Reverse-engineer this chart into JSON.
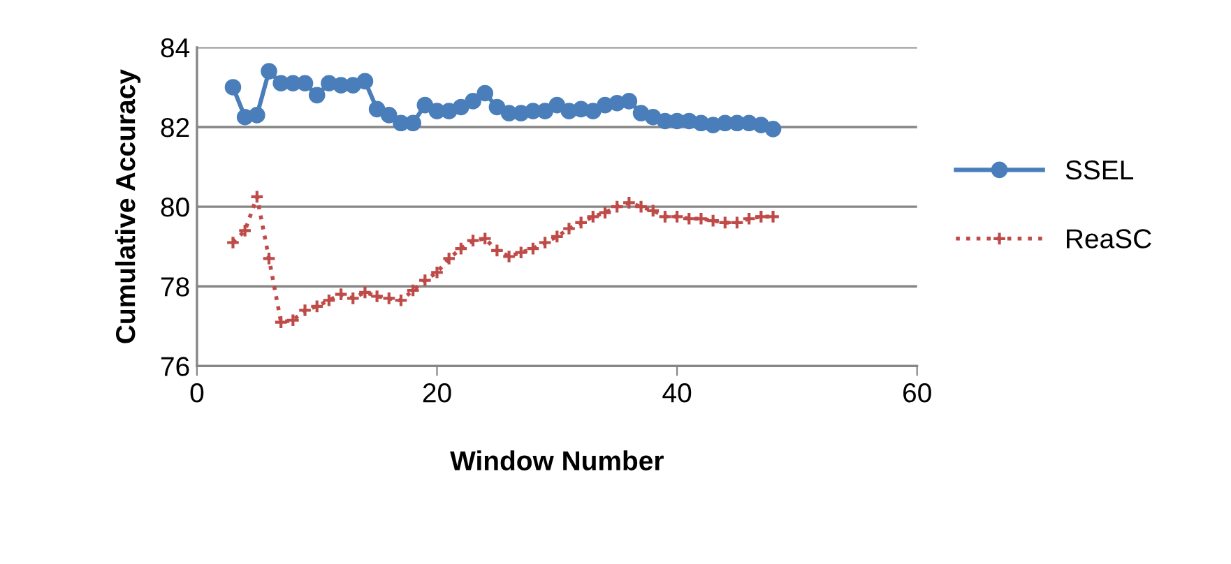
{
  "chart_data": {
    "type": "line",
    "xlabel": "Window Number",
    "ylabel": "Cumulative Accuracy",
    "x": [
      3,
      4,
      5,
      6,
      7,
      8,
      9,
      10,
      11,
      12,
      13,
      14,
      15,
      16,
      17,
      18,
      19,
      20,
      21,
      22,
      23,
      24,
      25,
      26,
      27,
      28,
      29,
      30,
      31,
      32,
      33,
      34,
      35,
      36,
      37,
      38,
      39,
      40,
      41,
      42,
      43,
      44,
      45,
      46,
      47,
      48
    ],
    "series": [
      {
        "name": "SSEL",
        "color": "#4a7ebb",
        "marker": "circle",
        "line_style": "solid",
        "values": [
          83.0,
          82.25,
          82.3,
          83.4,
          83.1,
          83.1,
          83.1,
          82.8,
          83.1,
          83.05,
          83.05,
          83.15,
          82.45,
          82.3,
          82.1,
          82.1,
          82.55,
          82.4,
          82.4,
          82.5,
          82.65,
          82.85,
          82.5,
          82.35,
          82.35,
          82.4,
          82.4,
          82.55,
          82.4,
          82.45,
          82.4,
          82.55,
          82.6,
          82.65,
          82.35,
          82.25,
          82.15,
          82.15,
          82.15,
          82.1,
          82.05,
          82.1,
          82.1,
          82.1,
          82.05,
          81.95
        ]
      },
      {
        "name": "ReaSC",
        "color": "#be4b48",
        "marker": "cross",
        "line_style": "dotted",
        "values": [
          79.1,
          79.4,
          80.25,
          78.7,
          77.1,
          77.15,
          77.4,
          77.5,
          77.65,
          77.8,
          77.7,
          77.85,
          77.75,
          77.7,
          77.65,
          77.9,
          78.15,
          78.35,
          78.7,
          78.95,
          79.15,
          79.2,
          78.9,
          78.75,
          78.85,
          78.95,
          79.1,
          79.25,
          79.45,
          79.6,
          79.75,
          79.85,
          80.0,
          80.1,
          80.0,
          79.9,
          79.75,
          79.75,
          79.7,
          79.7,
          79.65,
          79.6,
          79.6,
          79.7,
          79.75,
          79.75
        ]
      }
    ],
    "xlim": [
      0,
      60
    ],
    "xticks": [
      0,
      20,
      40,
      60
    ],
    "ylim": [
      76,
      84
    ],
    "yticks": [
      76,
      78,
      80,
      82,
      84
    ],
    "grid": "y",
    "legend": "right"
  }
}
